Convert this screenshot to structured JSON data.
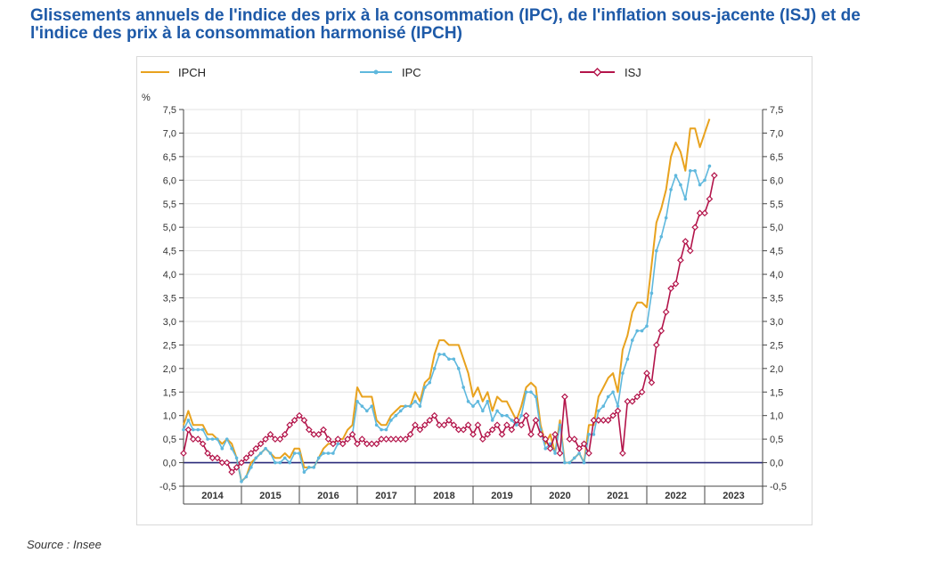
{
  "title": "Glissements annuels de l'indice des prix à la consommation (IPC), de l'inflation sous-jacente (ISJ) et de l'indice des prix à la consommation harmonisé (IPCH)",
  "source": "Source : Insee",
  "colors": {
    "IPCH": "#e8a21e",
    "IPC": "#5fb8dd",
    "ISJ": "#b3144a",
    "zero_line": "#2a2a7a",
    "axis": "#444444"
  },
  "chart_data": {
    "type": "line",
    "title": "Glissements annuels de l'indice des prix à la consommation (IPC), de l'inflation sous-jacente (ISJ) et de l'indice des prix à la consommation harmonisé (IPCH)",
    "ylabel": "%",
    "ylim": [
      -0.5,
      7.5
    ],
    "yticks": [
      "-0,5",
      "0,0",
      "0,5",
      "1,0",
      "1,5",
      "2,0",
      "2,5",
      "3,0",
      "3,5",
      "4,0",
      "4,5",
      "5,0",
      "5,5",
      "6,0",
      "6,5",
      "7,0",
      "7,5"
    ],
    "ytick_values": [
      -0.5,
      0,
      0.5,
      1,
      1.5,
      2,
      2.5,
      3,
      3.5,
      4,
      4.5,
      5,
      5.5,
      6,
      6.5,
      7,
      7.5
    ],
    "years": [
      "2014",
      "2015",
      "2016",
      "2017",
      "2018",
      "2019",
      "2020",
      "2021",
      "2022",
      "2023"
    ],
    "x_start": 2014,
    "x_end": 2024,
    "grid": true,
    "legend_position": "top",
    "series": [
      {
        "name": "IPCH",
        "marker": "none",
        "values": [
          0.8,
          1.1,
          0.8,
          0.8,
          0.8,
          0.6,
          0.6,
          0.5,
          0.4,
          0.5,
          0.4,
          0.1,
          -0.4,
          -0.3,
          0.0,
          0.1,
          0.2,
          0.3,
          0.2,
          0.1,
          0.1,
          0.2,
          0.1,
          0.3,
          0.3,
          -0.1,
          -0.1,
          -0.1,
          0.1,
          0.3,
          0.4,
          0.4,
          0.5,
          0.5,
          0.7,
          0.8,
          1.6,
          1.4,
          1.4,
          1.4,
          0.9,
          0.8,
          0.8,
          1.0,
          1.1,
          1.2,
          1.2,
          1.2,
          1.5,
          1.3,
          1.7,
          1.8,
          2.3,
          2.6,
          2.6,
          2.5,
          2.5,
          2.5,
          2.2,
          1.9,
          1.4,
          1.6,
          1.3,
          1.5,
          1.1,
          1.4,
          1.3,
          1.3,
          1.1,
          0.9,
          1.2,
          1.6,
          1.7,
          1.6,
          0.8,
          0.4,
          0.6,
          0.2,
          0.9,
          0.0,
          0.0,
          0.1,
          0.2,
          0.0,
          0.8,
          0.8,
          1.4,
          1.6,
          1.8,
          1.9,
          1.5,
          2.4,
          2.7,
          3.2,
          3.4,
          3.4,
          3.3,
          4.2,
          5.1,
          5.4,
          5.8,
          6.5,
          6.8,
          6.6,
          6.2,
          7.1,
          7.1,
          6.7,
          7.0,
          7.3
        ]
      },
      {
        "name": "IPC",
        "marker": "dot",
        "values": [
          0.7,
          0.9,
          0.7,
          0.7,
          0.7,
          0.5,
          0.5,
          0.5,
          0.3,
          0.5,
          0.3,
          0.1,
          -0.4,
          -0.3,
          -0.1,
          0.1,
          0.2,
          0.3,
          0.2,
          0.0,
          0.0,
          0.1,
          0.0,
          0.2,
          0.2,
          -0.2,
          -0.1,
          -0.1,
          0.1,
          0.2,
          0.2,
          0.2,
          0.4,
          0.4,
          0.5,
          0.6,
          1.3,
          1.2,
          1.1,
          1.2,
          0.8,
          0.7,
          0.7,
          0.9,
          1.0,
          1.1,
          1.2,
          1.2,
          1.3,
          1.2,
          1.6,
          1.7,
          2.0,
          2.3,
          2.3,
          2.2,
          2.2,
          2.0,
          1.6,
          1.3,
          1.2,
          1.3,
          1.1,
          1.3,
          0.9,
          1.1,
          1.0,
          1.0,
          0.9,
          0.8,
          1.0,
          1.5,
          1.5,
          1.4,
          0.7,
          0.3,
          0.4,
          0.2,
          0.8,
          0.0,
          0.0,
          0.1,
          0.2,
          0.0,
          0.6,
          0.6,
          1.1,
          1.2,
          1.4,
          1.5,
          1.2,
          1.9,
          2.2,
          2.6,
          2.8,
          2.8,
          2.9,
          3.6,
          4.5,
          4.8,
          5.2,
          5.8,
          6.1,
          5.9,
          5.6,
          6.2,
          6.2,
          5.9,
          6.0,
          6.3
        ]
      },
      {
        "name": "ISJ",
        "marker": "diamond",
        "values": [
          0.2,
          0.7,
          0.5,
          0.5,
          0.4,
          0.2,
          0.1,
          0.1,
          0.0,
          0.0,
          -0.2,
          -0.1,
          0.0,
          0.1,
          0.2,
          0.3,
          0.4,
          0.5,
          0.6,
          0.5,
          0.5,
          0.6,
          0.8,
          0.9,
          1.0,
          0.9,
          0.7,
          0.6,
          0.6,
          0.7,
          0.5,
          0.4,
          0.5,
          0.4,
          0.5,
          0.6,
          0.4,
          0.5,
          0.4,
          0.4,
          0.4,
          0.5,
          0.5,
          0.5,
          0.5,
          0.5,
          0.5,
          0.6,
          0.8,
          0.7,
          0.8,
          0.9,
          1.0,
          0.8,
          0.8,
          0.9,
          0.8,
          0.7,
          0.7,
          0.8,
          0.6,
          0.8,
          0.5,
          0.6,
          0.7,
          0.8,
          0.6,
          0.8,
          0.7,
          0.9,
          0.8,
          1.0,
          0.6,
          0.9,
          0.6,
          0.5,
          0.3,
          0.6,
          0.2,
          1.4,
          0.5,
          0.5,
          0.3,
          0.4,
          0.2,
          0.9,
          0.9,
          0.9,
          0.9,
          1.0,
          1.1,
          0.2,
          1.3,
          1.3,
          1.4,
          1.5,
          1.9,
          1.7,
          2.5,
          2.8,
          3.2,
          3.7,
          3.8,
          4.3,
          4.7,
          4.5,
          5.0,
          5.3,
          5.3,
          5.6,
          6.1
        ]
      }
    ]
  }
}
